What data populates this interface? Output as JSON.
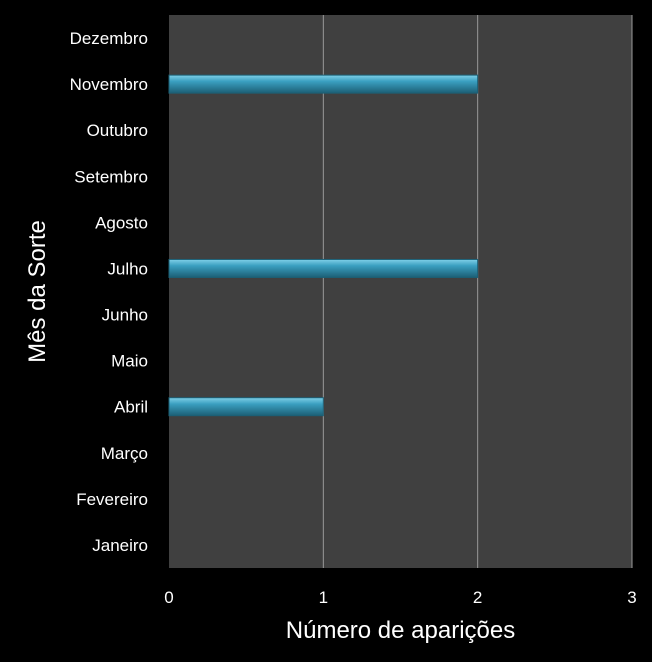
{
  "chart_data": {
    "type": "bar",
    "orientation": "horizontal",
    "categories": [
      "Janeiro",
      "Fevereiro",
      "Março",
      "Abril",
      "Maio",
      "Junho",
      "Julho",
      "Agosto",
      "Setembro",
      "Outubro",
      "Novembro",
      "Dezembro"
    ],
    "values": [
      0,
      0,
      0,
      1,
      0,
      0,
      2,
      0,
      0,
      0,
      2,
      0
    ],
    "xlabel": "Número de aparições",
    "ylabel": "Mês da Sorte",
    "xlim": [
      0,
      3
    ],
    "xticks": [
      0,
      1,
      2,
      3
    ],
    "grid": "vertical",
    "colors": {
      "background": "#000000",
      "plot_area": "#404040",
      "gridline": "#9a9a9a",
      "bar": "#3a9fc0",
      "bar_highlight": "#7fd0e8",
      "bar_shadow": "#1c5f75",
      "text": "#ffffff"
    }
  }
}
